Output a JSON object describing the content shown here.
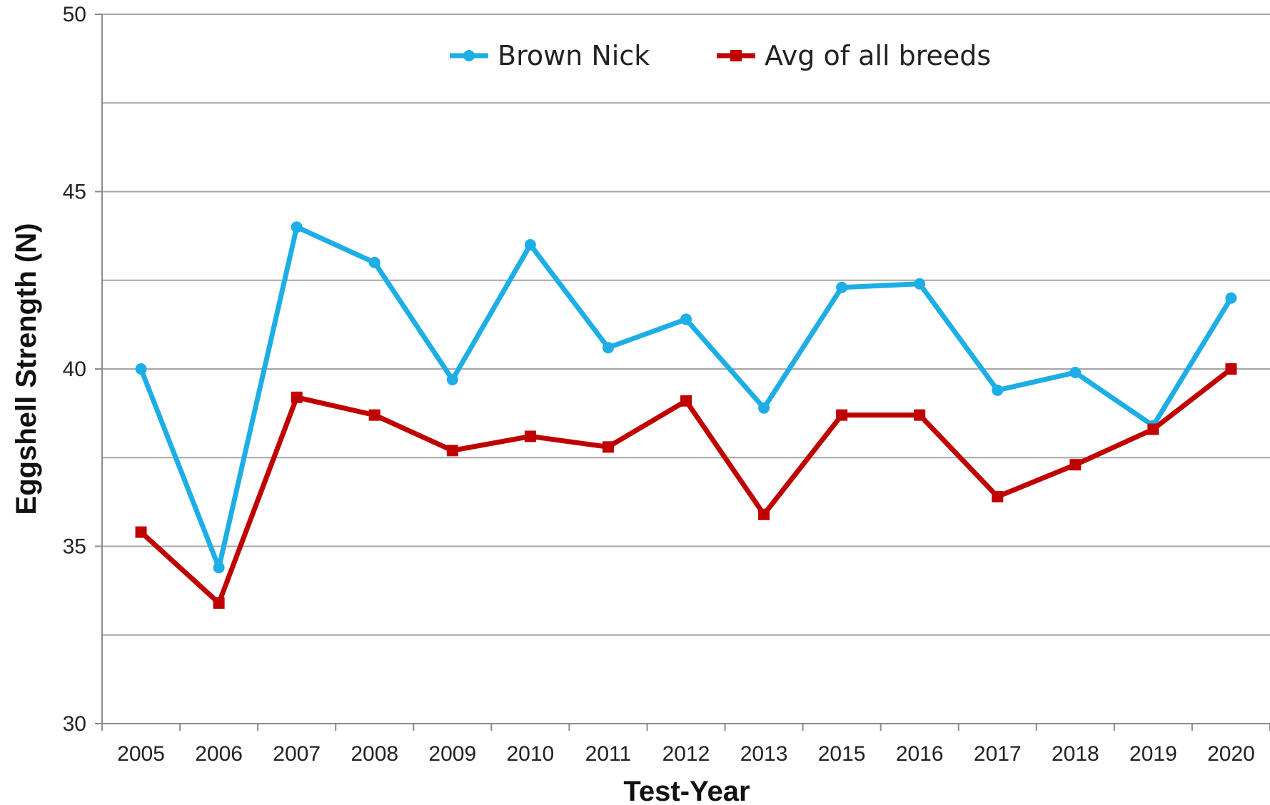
{
  "chart_data": {
    "type": "line",
    "title": "",
    "xlabel": "Test-Year",
    "ylabel": "Eggshell Strength (N)",
    "ylim": [
      30,
      50
    ],
    "yticks": [
      "30",
      "35",
      "40",
      "45",
      "50"
    ],
    "y_gridlines_every": 2.5,
    "grid": true,
    "legend_position": "top-center",
    "categories": [
      "2005",
      "2006",
      "2007",
      "2008",
      "2009",
      "2010",
      "2011",
      "2012",
      "2013",
      "2015",
      "2016",
      "2017",
      "2018",
      "2019",
      "2020"
    ],
    "series": [
      {
        "name": "Brown Nick",
        "color": "#1eaee6",
        "marker": "circle",
        "values": [
          40.0,
          34.4,
          44.0,
          43.0,
          39.7,
          43.5,
          40.6,
          41.4,
          38.9,
          42.3,
          42.4,
          39.4,
          39.9,
          38.4,
          42.0
        ]
      },
      {
        "name": "Avg of all breeds",
        "color": "#c00000",
        "marker": "square",
        "values": [
          35.4,
          33.4,
          39.2,
          38.7,
          37.7,
          38.1,
          37.8,
          39.1,
          35.9,
          38.7,
          38.7,
          36.4,
          37.3,
          38.3,
          40.0
        ]
      }
    ]
  }
}
